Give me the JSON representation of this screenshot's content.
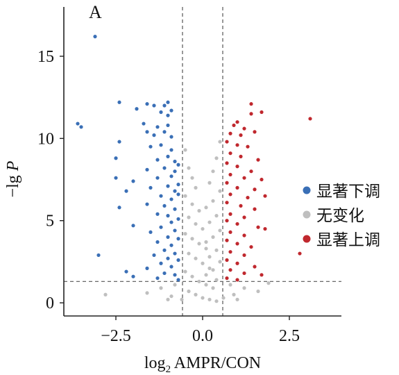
{
  "chart_data": {
    "type": "scatter",
    "panel_label": "A",
    "xlabel": {
      "base": "log",
      "subscript": "2",
      "rest": " AMPR/CON"
    },
    "ylabel": {
      "prefix": "−lg ",
      "italic": "P"
    },
    "xlim": [
      -4.0,
      4.0
    ],
    "ylim": [
      -0.8,
      18.0
    ],
    "x_ticks": [
      {
        "value": -2.5,
        "label": "−2.5"
      },
      {
        "value": 0.0,
        "label": "0.0"
      },
      {
        "value": 2.5,
        "label": "2.5"
      }
    ],
    "y_ticks": [
      {
        "value": 0,
        "label": "0"
      },
      {
        "value": 5,
        "label": "5"
      },
      {
        "value": 10,
        "label": "10"
      },
      {
        "value": 15,
        "label": "15"
      }
    ],
    "thresholds": {
      "x": [
        -0.58,
        0.58
      ],
      "y": 1.3
    },
    "series": [
      {
        "name": "显著下调",
        "color": "#3a6fb6",
        "points": [
          [
            -3.1,
            16.2
          ],
          [
            -2.4,
            12.2
          ],
          [
            -1.6,
            12.1
          ],
          [
            -1.4,
            12.0
          ],
          [
            -1.1,
            12.0
          ],
          [
            -1.0,
            12.2
          ],
          [
            -1.9,
            11.8
          ],
          [
            -1.2,
            11.6
          ],
          [
            -1.0,
            11.4
          ],
          [
            -0.9,
            11.7
          ],
          [
            -3.6,
            10.9
          ],
          [
            -3.5,
            10.7
          ],
          [
            -1.7,
            10.9
          ],
          [
            -1.3,
            10.7
          ],
          [
            -1.0,
            10.8
          ],
          [
            -1.6,
            10.4
          ],
          [
            -1.4,
            10.2
          ],
          [
            -1.1,
            10.4
          ],
          [
            -0.9,
            10.1
          ],
          [
            -2.4,
            9.8
          ],
          [
            -1.5,
            9.5
          ],
          [
            -1.2,
            9.6
          ],
          [
            -0.9,
            9.3
          ],
          [
            -2.5,
            8.8
          ],
          [
            -1.3,
            8.7
          ],
          [
            -1.0,
            8.9
          ],
          [
            -0.8,
            8.6
          ],
          [
            -1.6,
            8.1
          ],
          [
            -1.1,
            8.2
          ],
          [
            -0.8,
            8.0
          ],
          [
            -0.7,
            8.4
          ],
          [
            -2.5,
            7.6
          ],
          [
            -2.0,
            7.4
          ],
          [
            -1.3,
            7.6
          ],
          [
            -0.9,
            7.7
          ],
          [
            -0.7,
            7.2
          ],
          [
            -1.5,
            7.0
          ],
          [
            -1.0,
            7.1
          ],
          [
            -0.8,
            6.8
          ],
          [
            -2.2,
            6.8
          ],
          [
            -1.2,
            6.5
          ],
          [
            -0.9,
            6.3
          ],
          [
            -0.7,
            6.6
          ],
          [
            -1.6,
            6.0
          ],
          [
            -1.1,
            5.9
          ],
          [
            -0.8,
            5.7
          ],
          [
            -2.4,
            5.8
          ],
          [
            -1.3,
            5.4
          ],
          [
            -1.0,
            5.3
          ],
          [
            -0.7,
            5.1
          ],
          [
            -0.9,
            4.9
          ],
          [
            -1.2,
            4.6
          ],
          [
            -0.8,
            4.4
          ],
          [
            -2.0,
            4.7
          ],
          [
            -1.5,
            4.3
          ],
          [
            -1.0,
            4.0
          ],
          [
            -0.7,
            3.9
          ],
          [
            -1.3,
            3.7
          ],
          [
            -0.9,
            3.5
          ],
          [
            -1.1,
            3.2
          ],
          [
            -0.8,
            3.0
          ],
          [
            -1.4,
            2.9
          ],
          [
            -1.0,
            2.7
          ],
          [
            -0.7,
            2.6
          ],
          [
            -3.0,
            2.9
          ],
          [
            -1.2,
            2.4
          ],
          [
            -0.9,
            2.2
          ],
          [
            -1.6,
            2.1
          ],
          [
            -2.2,
            1.9
          ],
          [
            -1.1,
            1.8
          ],
          [
            -0.8,
            1.7
          ],
          [
            -2.0,
            1.6
          ],
          [
            -1.3,
            1.5
          ],
          [
            -0.7,
            1.4
          ]
        ]
      },
      {
        "name": "无变化",
        "color": "#bfbfbf",
        "points": [
          [
            -0.5,
            9.3
          ],
          [
            -0.4,
            8.2
          ],
          [
            -0.3,
            7.6
          ],
          [
            -0.2,
            7.0
          ],
          [
            -0.5,
            6.5
          ],
          [
            -0.3,
            6.0
          ],
          [
            -0.1,
            5.6
          ],
          [
            -0.4,
            5.2
          ],
          [
            -0.2,
            4.8
          ],
          [
            0.0,
            4.5
          ],
          [
            -0.5,
            4.2
          ],
          [
            -0.3,
            3.9
          ],
          [
            -0.1,
            3.6
          ],
          [
            0.1,
            3.3
          ],
          [
            -0.4,
            3.0
          ],
          [
            -0.2,
            2.7
          ],
          [
            0.0,
            2.4
          ],
          [
            0.2,
            2.1
          ],
          [
            -0.5,
            1.9
          ],
          [
            -0.3,
            1.6
          ],
          [
            -0.1,
            1.3
          ],
          [
            0.1,
            1.1
          ],
          [
            0.3,
            0.9
          ],
          [
            -0.4,
            0.7
          ],
          [
            -0.2,
            0.5
          ],
          [
            0.0,
            0.3
          ],
          [
            0.2,
            0.2
          ],
          [
            0.4,
            0.1
          ],
          [
            0.5,
            9.8
          ],
          [
            0.4,
            8.8
          ],
          [
            0.3,
            8.0
          ],
          [
            0.2,
            7.3
          ],
          [
            0.5,
            6.8
          ],
          [
            0.3,
            6.2
          ],
          [
            0.1,
            5.8
          ],
          [
            0.4,
            5.3
          ],
          [
            0.2,
            4.9
          ],
          [
            0.5,
            4.4
          ],
          [
            0.3,
            4.0
          ],
          [
            0.1,
            3.7
          ],
          [
            0.4,
            3.2
          ],
          [
            0.2,
            2.8
          ],
          [
            0.5,
            2.5
          ],
          [
            0.3,
            2.0
          ],
          [
            0.1,
            1.7
          ],
          [
            0.4,
            1.4
          ],
          [
            -0.8,
            1.1
          ],
          [
            -1.2,
            0.9
          ],
          [
            -1.6,
            0.6
          ],
          [
            -2.8,
            0.5
          ],
          [
            0.8,
            1.1
          ],
          [
            1.2,
            0.9
          ],
          [
            1.6,
            0.7
          ],
          [
            1.9,
            1.2
          ],
          [
            -0.9,
            0.4
          ],
          [
            0.9,
            0.5
          ],
          [
            -0.6,
            0.2
          ],
          [
            0.6,
            0.3
          ],
          [
            -1.0,
            0.2
          ],
          [
            1.0,
            0.2
          ]
        ]
      },
      {
        "name": "显著上调",
        "color": "#c0282e",
        "points": [
          [
            1.4,
            12.1
          ],
          [
            1.7,
            11.6
          ],
          [
            1.4,
            11.5
          ],
          [
            3.1,
            11.2
          ],
          [
            1.0,
            11.0
          ],
          [
            0.9,
            10.8
          ],
          [
            1.2,
            10.6
          ],
          [
            0.8,
            10.3
          ],
          [
            1.1,
            10.2
          ],
          [
            1.5,
            10.4
          ],
          [
            0.7,
            9.8
          ],
          [
            1.0,
            9.6
          ],
          [
            1.3,
            9.5
          ],
          [
            0.8,
            9.1
          ],
          [
            1.1,
            8.9
          ],
          [
            1.6,
            8.7
          ],
          [
            0.7,
            8.5
          ],
          [
            1.0,
            8.3
          ],
          [
            1.4,
            8.0
          ],
          [
            0.8,
            7.8
          ],
          [
            1.2,
            7.6
          ],
          [
            1.7,
            7.5
          ],
          [
            0.7,
            7.3
          ],
          [
            1.0,
            7.0
          ],
          [
            1.5,
            6.9
          ],
          [
            0.8,
            6.6
          ],
          [
            1.3,
            6.4
          ],
          [
            1.8,
            6.5
          ],
          [
            0.7,
            6.1
          ],
          [
            1.1,
            5.9
          ],
          [
            1.5,
            5.7
          ],
          [
            0.8,
            5.4
          ],
          [
            1.2,
            5.2
          ],
          [
            0.7,
            5.0
          ],
          [
            1.0,
            4.8
          ],
          [
            1.6,
            4.6
          ],
          [
            1.8,
            4.5
          ],
          [
            0.8,
            4.3
          ],
          [
            1.2,
            4.1
          ],
          [
            0.7,
            3.8
          ],
          [
            1.0,
            3.6
          ],
          [
            1.4,
            3.4
          ],
          [
            0.8,
            3.1
          ],
          [
            1.2,
            2.9
          ],
          [
            2.8,
            3.0
          ],
          [
            0.7,
            2.6
          ],
          [
            1.0,
            2.4
          ],
          [
            1.5,
            2.2
          ],
          [
            0.8,
            2.0
          ],
          [
            1.2,
            1.8
          ],
          [
            1.7,
            1.7
          ],
          [
            0.7,
            1.5
          ],
          [
            1.0,
            1.4
          ]
        ]
      }
    ],
    "legend": {
      "placement": "right"
    }
  }
}
